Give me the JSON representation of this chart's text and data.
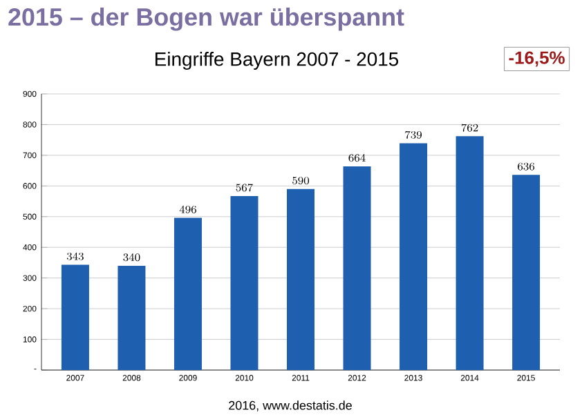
{
  "chart_data": {
    "type": "bar",
    "title": "2015 – der Bogen war überspannt",
    "subtitle": "Eingriffe Bayern 2007 - 2015",
    "annotations": [
      "-16,5%",
      "2016, www.destatis.de"
    ],
    "categories": [
      "2007",
      "2008",
      "2009",
      "2010",
      "2011",
      "2012",
      "2013",
      "2014",
      "2015"
    ],
    "values": [
      343,
      340,
      496,
      567,
      590,
      664,
      739,
      762,
      636
    ],
    "color": "#1f5fb0",
    "data_labels": true,
    "ylim": [
      0,
      900
    ],
    "yticks": [
      {
        "value": 0,
        "label": "-"
      },
      100,
      200,
      300,
      400,
      500,
      600,
      700,
      800,
      900
    ],
    "grid": "y"
  }
}
